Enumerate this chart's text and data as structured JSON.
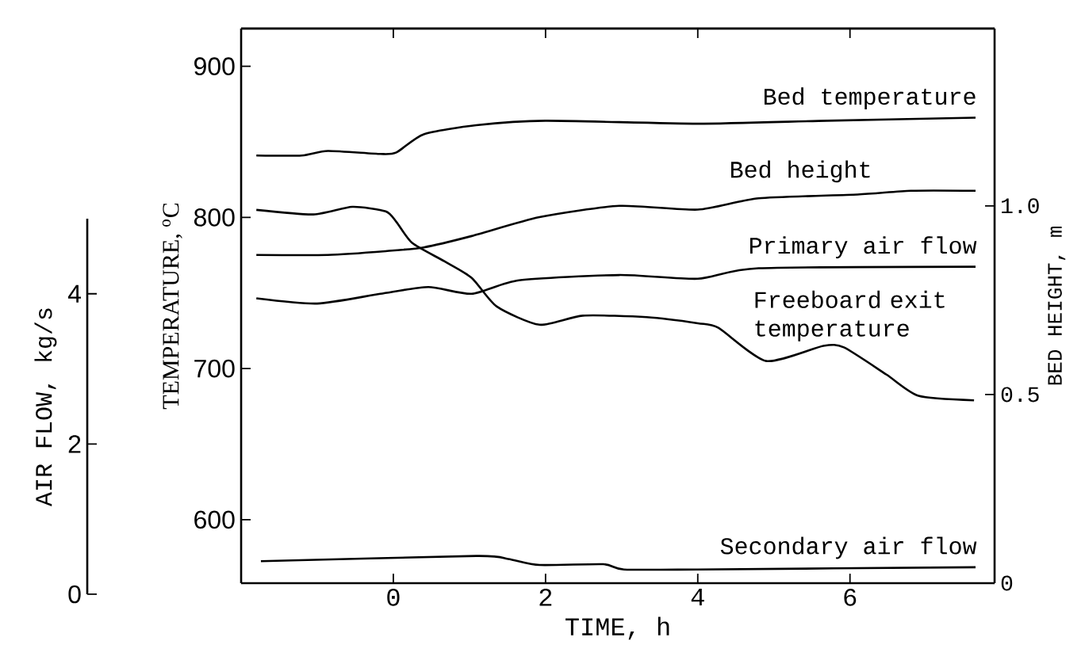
{
  "chart_data": {
    "type": "line",
    "xlabel": "TIME, h",
    "ylabel": "TEMPERATURE, $^{o}$C",
    "y2label": "BED HEIGHT, m",
    "y3label": "AIR FLOW, kg/s",
    "xlim": [
      -2,
      7.9
    ],
    "xticks": [
      0,
      2,
      4,
      6
    ],
    "ylim": [
      558,
      925
    ],
    "yticks": [
      600,
      700,
      800,
      900
    ],
    "y2lim": [
      0,
      1.47
    ],
    "y2ticks": [
      0,
      0.5,
      {
        "value": 1.0,
        "label": "1.0"
      }
    ],
    "y3lim": [
      0,
      5
    ],
    "y3ticks": [
      0,
      2,
      4
    ],
    "series": [
      {
        "name": "Bed temperature",
        "color": "#000000",
        "axis": "y",
        "x": [
          -1.8,
          -1.2,
          -0.86,
          -0.17,
          0.04,
          0.4,
          1.09,
          2.0,
          4.0,
          5.7,
          7.65
        ],
        "values": [
          841,
          841,
          844,
          842,
          843,
          855,
          861,
          864,
          862,
          864,
          866
        ]
      },
      {
        "name": "Bed height",
        "color": "#000000",
        "axis": "y2",
        "x": [
          -1.8,
          -0.86,
          -0.1,
          0.4,
          1.03,
          1.92,
          2.97,
          4.0,
          4.8,
          6.1,
          6.8,
          7.65
        ],
        "values": [
          0.87,
          0.87,
          0.88,
          0.89,
          0.92,
          0.97,
          1.0,
          0.99,
          1.02,
          1.03,
          1.04,
          1.04
        ]
      },
      {
        "name": "Primary air flow",
        "color": "#000000",
        "axis": "y3",
        "x": [
          -1.8,
          -1.0,
          -0.17,
          0.46,
          1.03,
          1.65,
          2.97,
          4.0,
          4.8,
          7.65
        ],
        "values": [
          3.94,
          3.87,
          4.0,
          4.09,
          4.0,
          4.18,
          4.25,
          4.2,
          4.34,
          4.36
        ]
      },
      {
        "name": "Freeboard exit temperature",
        "color": "#000000",
        "axis": "y",
        "x": [
          -1.8,
          -1.05,
          -0.54,
          -0.1,
          0.04,
          0.25,
          0.67,
          1.03,
          1.36,
          1.92,
          2.49,
          3.33,
          4.0,
          4.27,
          4.9,
          5.65,
          5.92,
          6.48,
          6.9,
          7.63
        ],
        "values": [
          805,
          802,
          807,
          804,
          797,
          783,
          771,
          760,
          741,
          729,
          735,
          734,
          730,
          727,
          705,
          715,
          714,
          696,
          682,
          679
        ]
      },
      {
        "name": "Secondary air flow",
        "color": "#000000",
        "axis": "y3",
        "x": [
          -1.74,
          1.09,
          1.51,
          1.92,
          2.76,
          3.03,
          4.0,
          7.65
        ],
        "values": [
          0.44,
          0.51,
          0.47,
          0.39,
          0.4,
          0.33,
          0.33,
          0.36
        ]
      }
    ]
  }
}
